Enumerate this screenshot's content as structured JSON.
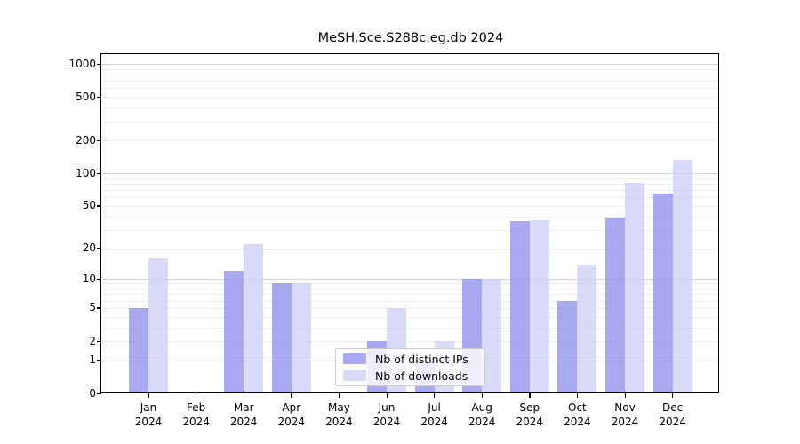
{
  "chart_data": {
    "type": "bar",
    "title": "MeSH.Sce.S288c.eg.db 2024",
    "categories": [
      "Jan",
      "Feb",
      "Mar",
      "Apr",
      "May",
      "Jun",
      "Jul",
      "Aug",
      "Sep",
      "Oct",
      "Nov",
      "Dec"
    ],
    "x_year_label": "2024",
    "series": [
      {
        "name": "Nb of distinct IPs",
        "color": "rgba(132,132,236,0.7)",
        "values": [
          5,
          0,
          12,
          9,
          0,
          2,
          1,
          10,
          36,
          6,
          38,
          65
        ]
      },
      {
        "name": "Nb of downloads",
        "color": "rgba(201,201,245,0.7)",
        "values": [
          16,
          0,
          22,
          9,
          0,
          5,
          2,
          10,
          37,
          14,
          82,
          134
        ]
      }
    ],
    "yticks": [
      0,
      1,
      2,
      5,
      10,
      20,
      50,
      100,
      200,
      500,
      1000
    ],
    "ylim": [
      0,
      1000
    ],
    "yscale": "log1p",
    "grid": "horizontal",
    "legend_position": "lower-center-inside"
  },
  "colors": {
    "ips_bar": "rgba(132,132,236,0.7)",
    "downloads_bar": "rgba(201,201,245,0.7)",
    "grid_minor": "#ededed",
    "grid_major": "#d5d5d5",
    "axis": "#000000",
    "legend_border": "#cccccc",
    "background": "#ffffff"
  }
}
